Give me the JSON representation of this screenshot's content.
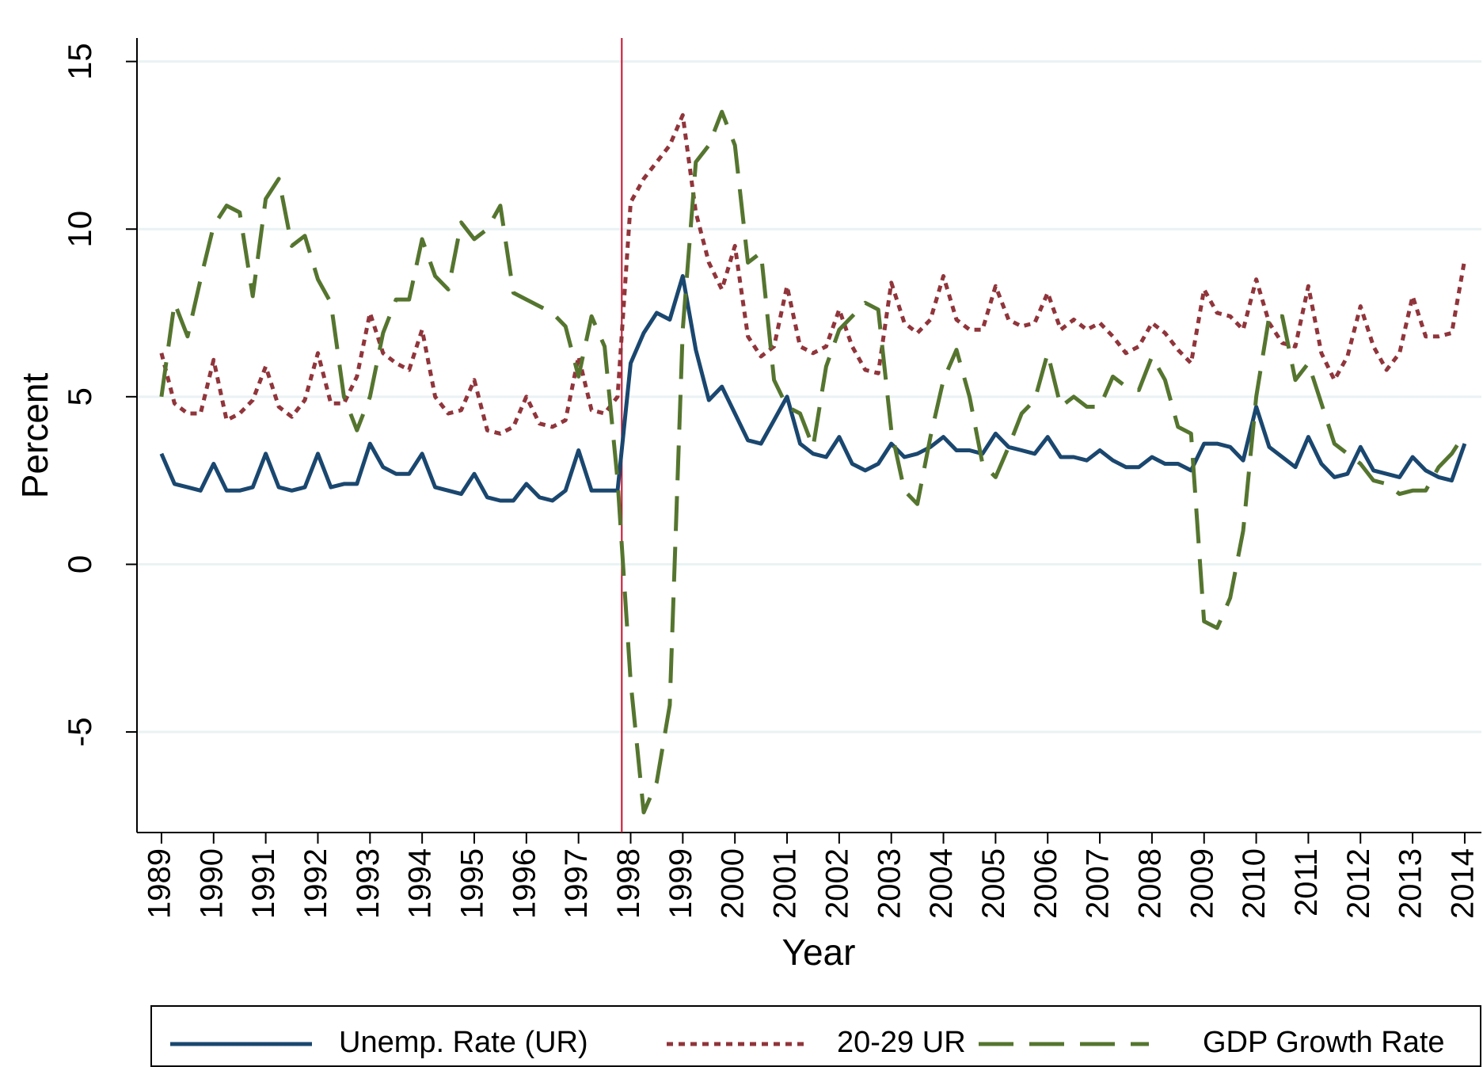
{
  "chart_data": {
    "type": "line",
    "x_label": "Year",
    "y_label": "Percent",
    "xlim": [
      1988.53,
      2014.32
    ],
    "ylim": [
      -8,
      15.7
    ],
    "xticks": [
      1989,
      1990,
      1991,
      1992,
      1993,
      1994,
      1995,
      1996,
      1997,
      1998,
      1999,
      2000,
      2001,
      2002,
      2003,
      2004,
      2005,
      2006,
      2007,
      2008,
      2009,
      2010,
      2011,
      2012,
      2013,
      2014
    ],
    "yticks": [
      -5,
      0,
      5,
      10,
      15
    ],
    "grid": true,
    "vline": {
      "x": 1997.83,
      "color": "#c8102e"
    },
    "x": [
      1989,
      1989.25,
      1989.5,
      1989.75,
      1990,
      1990.25,
      1990.5,
      1990.75,
      1991,
      1991.25,
      1991.5,
      1991.75,
      1992,
      1992.25,
      1992.5,
      1992.75,
      1993,
      1993.25,
      1993.5,
      1993.75,
      1994,
      1994.25,
      1994.5,
      1994.75,
      1995,
      1995.25,
      1995.5,
      1995.75,
      1996,
      1996.25,
      1996.5,
      1996.75,
      1997,
      1997.25,
      1997.5,
      1997.75,
      1998,
      1998.25,
      1998.5,
      1998.75,
      1999,
      1999.25,
      1999.5,
      1999.75,
      2000,
      2000.25,
      2000.5,
      2000.75,
      2001,
      2001.25,
      2001.5,
      2001.75,
      2002,
      2002.25,
      2002.5,
      2002.75,
      2003,
      2003.25,
      2003.5,
      2003.75,
      2004,
      2004.25,
      2004.5,
      2004.75,
      2005,
      2005.25,
      2005.5,
      2005.75,
      2006,
      2006.25,
      2006.5,
      2006.75,
      2007,
      2007.25,
      2007.5,
      2007.75,
      2008,
      2008.25,
      2008.5,
      2008.75,
      2009,
      2009.25,
      2009.5,
      2009.75,
      2010,
      2010.25,
      2010.5,
      2010.75,
      2011,
      2011.25,
      2011.5,
      2011.75,
      2012,
      2012.25,
      2012.5,
      2012.75,
      2013,
      2013.25,
      2013.5,
      2013.75,
      2014
    ],
    "series": [
      {
        "name": "Unemp. Rate (UR)",
        "color": "#1a476f",
        "dash": "none",
        "values": [
          3.3,
          2.4,
          2.3,
          2.2,
          3.0,
          2.2,
          2.2,
          2.3,
          3.3,
          2.3,
          2.2,
          2.3,
          3.3,
          2.3,
          2.4,
          2.4,
          3.6,
          2.9,
          2.7,
          2.7,
          3.3,
          2.3,
          2.2,
          2.1,
          2.7,
          2.0,
          1.9,
          1.9,
          2.4,
          2.0,
          1.9,
          2.2,
          3.4,
          2.2,
          2.2,
          2.2,
          6.0,
          6.9,
          7.5,
          7.3,
          8.6,
          6.4,
          4.9,
          5.3,
          4.5,
          3.7,
          3.6,
          4.3,
          5.0,
          3.6,
          3.3,
          3.2,
          3.8,
          3.0,
          2.8,
          3.0,
          3.6,
          3.2,
          3.3,
          3.5,
          3.8,
          3.4,
          3.4,
          3.3,
          3.9,
          3.5,
          3.4,
          3.3,
          3.8,
          3.2,
          3.2,
          3.1,
          3.4,
          3.1,
          2.9,
          2.9,
          3.2,
          3.0,
          3.0,
          2.8,
          3.6,
          3.6,
          3.5,
          3.1,
          4.7,
          3.5,
          3.2,
          2.9,
          3.8,
          3.0,
          2.6,
          2.7,
          3.5,
          2.8,
          2.7,
          2.6,
          3.2,
          2.8,
          2.6,
          2.5,
          3.6
        ]
      },
      {
        "name": "20-29 UR",
        "color": "#90353b",
        "dash": "8 7",
        "values": [
          6.3,
          4.8,
          4.5,
          4.5,
          6.1,
          4.3,
          4.5,
          4.9,
          5.9,
          4.7,
          4.4,
          4.9,
          6.3,
          4.8,
          4.8,
          5.6,
          7.5,
          6.3,
          6.0,
          5.8,
          7.0,
          5.0,
          4.5,
          4.6,
          5.5,
          4.0,
          3.9,
          4.1,
          5.0,
          4.2,
          4.1,
          4.3,
          6.2,
          4.6,
          4.5,
          5.0,
          10.8,
          11.5,
          12.0,
          12.5,
          13.4,
          10.5,
          9.0,
          8.2,
          9.5,
          6.8,
          6.2,
          6.5,
          8.3,
          6.5,
          6.3,
          6.5,
          7.6,
          6.5,
          5.8,
          5.7,
          8.4,
          7.2,
          6.9,
          7.3,
          8.6,
          7.3,
          7.0,
          7.0,
          8.3,
          7.3,
          7.1,
          7.2,
          8.1,
          7.0,
          7.3,
          7.0,
          7.2,
          6.8,
          6.3,
          6.5,
          7.2,
          6.9,
          6.4,
          6.0,
          8.2,
          7.5,
          7.4,
          7.0,
          8.5,
          7.2,
          6.6,
          6.5,
          8.3,
          6.3,
          5.5,
          6.2,
          7.7,
          6.5,
          5.8,
          6.3,
          8.0,
          6.8,
          6.8,
          6.9,
          9.1
        ]
      },
      {
        "name": "GDP Growth Rate",
        "color": "#55752f",
        "dash": "44 20",
        "values": [
          5.0,
          7.8,
          6.8,
          8.5,
          10.1,
          10.7,
          10.5,
          8.0,
          10.9,
          11.5,
          9.5,
          9.8,
          8.5,
          7.8,
          5.0,
          4.0,
          5.0,
          6.9,
          7.9,
          7.9,
          9.7,
          8.6,
          8.2,
          10.2,
          9.7,
          10.0,
          10.7,
          8.1,
          7.9,
          7.7,
          7.5,
          7.1,
          5.6,
          7.4,
          6.5,
          2.5,
          -3.5,
          -7.4,
          -6.5,
          -4.2,
          7.0,
          12.0,
          12.5,
          13.5,
          12.5,
          9.0,
          9.3,
          5.5,
          4.7,
          4.5,
          3.5,
          5.9,
          7.0,
          7.4,
          7.8,
          7.6,
          4.0,
          2.2,
          1.8,
          3.8,
          5.5,
          6.4,
          5.0,
          3.0,
          2.6,
          3.5,
          4.5,
          4.9,
          6.3,
          4.7,
          5.0,
          4.7,
          4.7,
          5.6,
          5.3,
          5.2,
          6.2,
          5.5,
          4.1,
          3.9,
          -1.7,
          -1.9,
          -1.0,
          1.0,
          5.0,
          7.4,
          7.4,
          5.5,
          6.0,
          4.8,
          3.6,
          3.3,
          3.0,
          2.5,
          2.4,
          2.1,
          2.2,
          2.2,
          2.9,
          3.3,
          3.9
        ]
      }
    ]
  }
}
